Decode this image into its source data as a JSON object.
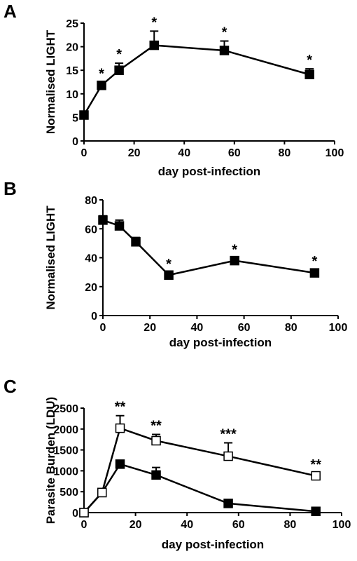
{
  "chart_data": [
    {
      "type": "line",
      "panel": "A",
      "ylabel": "Normalised LIGHT",
      "xlabel": "day post-infection",
      "x": [
        0,
        7,
        14,
        28,
        56,
        90
      ],
      "series": [
        {
          "color": "#000000",
          "marker_fill": "#000000",
          "values": [
            5.5,
            11.8,
            15,
            20.3,
            19.2,
            14.1
          ],
          "errors": [
            0.5,
            0.6,
            1.5,
            3,
            2,
            1.2
          ],
          "labels": [
            null,
            "*",
            "*",
            "*",
            "*",
            "*"
          ]
        }
      ],
      "xlim": [
        0,
        100
      ],
      "xticks": [
        0,
        20,
        40,
        60,
        80,
        100
      ],
      "ylim": [
        0,
        25
      ],
      "yticks": [
        0,
        5,
        10,
        15,
        20,
        25
      ]
    },
    {
      "type": "line",
      "panel": "B",
      "ylabel": "Normalised LIGHT",
      "xlabel": "day post-infection",
      "x": [
        0,
        7,
        14,
        28,
        56,
        90
      ],
      "series": [
        {
          "color": "#000000",
          "marker_fill": "#000000",
          "values": [
            66,
            62,
            51,
            28,
            38,
            29.5
          ],
          "errors": [
            3,
            4,
            3,
            1.5,
            1.5,
            2
          ],
          "labels": [
            null,
            null,
            null,
            "*",
            "*",
            "*"
          ]
        }
      ],
      "xlim": [
        0,
        100
      ],
      "xticks": [
        0,
        20,
        40,
        60,
        80,
        100
      ],
      "ylim": [
        0,
        80
      ],
      "yticks": [
        0,
        20,
        40,
        60,
        80
      ]
    },
    {
      "type": "line",
      "panel": "C",
      "ylabel": "Parasite Burden (LDU)",
      "xlabel": "day post-infection",
      "x": [
        0,
        7,
        14,
        28,
        56,
        90
      ],
      "series": [
        {
          "color": "#000000",
          "marker_fill": "#000000",
          "values": [
            0,
            480,
            1160,
            900,
            220,
            30
          ],
          "errors": [
            0,
            0,
            50,
            180,
            0,
            0
          ]
        },
        {
          "color": "#000000",
          "marker_fill": "#ffffff",
          "values": [
            0,
            480,
            2020,
            1720,
            1350,
            880
          ],
          "errors": [
            0,
            0,
            300,
            150,
            320,
            60
          ],
          "labels": [
            null,
            null,
            "**",
            "**",
            "***",
            "**"
          ]
        }
      ],
      "xlim": [
        0,
        100
      ],
      "xticks": [
        0,
        20,
        40,
        60,
        80,
        100
      ],
      "ylim": [
        0,
        2500
      ],
      "yticks": [
        0,
        500,
        1000,
        1500,
        2000,
        2500
      ]
    }
  ]
}
